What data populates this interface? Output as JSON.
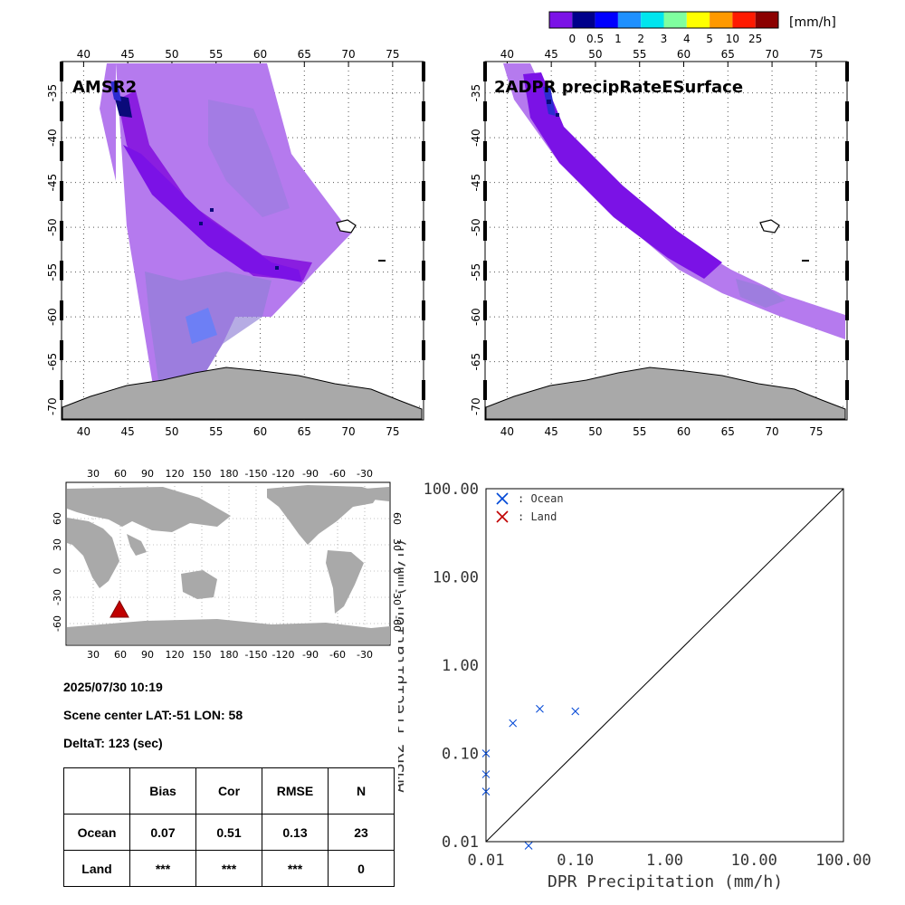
{
  "colorbar": {
    "unit": "[mm/h]",
    "tick_labels": [
      "0",
      "0.5",
      "1",
      "2",
      "3",
      "4",
      "5",
      "10",
      "25"
    ],
    "colors": [
      "#7b12e6",
      "#00008b",
      "#0000ff",
      "#1e90ff",
      "#00e5ee",
      "#7fff9f",
      "#ffff00",
      "#ff9900",
      "#ff1a00",
      "#8b0000"
    ]
  },
  "maps": [
    {
      "title": "AMSR2",
      "lon_ticks": [
        "40",
        "45",
        "50",
        "55",
        "60",
        "65",
        "70",
        "75"
      ],
      "lat_ticks": [
        "-35",
        "-40",
        "-45",
        "-50",
        "-55",
        "-60",
        "-65",
        "-70"
      ]
    },
    {
      "title": "2ADPR precipRateESurface",
      "lon_ticks": [
        "40",
        "45",
        "50",
        "55",
        "60",
        "65",
        "70",
        "75"
      ],
      "lat_ticks": [
        "-35",
        "-40",
        "-45",
        "-50",
        "-55",
        "-60",
        "-65",
        "-70"
      ]
    }
  ],
  "world_map": {
    "lon_ticks": [
      "30",
      "60",
      "90",
      "120",
      "150",
      "180",
      "-150",
      "-120",
      "-90",
      "-60",
      "-30"
    ],
    "lat_ticks": [
      "60",
      "30",
      "0",
      "-30",
      "-60"
    ]
  },
  "info": {
    "datetime": "2025/07/30 10:19",
    "scene_center": "Scene center LAT:-51   LON:  58",
    "delta_t": "DeltaT:  123 (sec)"
  },
  "stats_table": {
    "headers": [
      "",
      "Bias",
      "Cor",
      "RMSE",
      "N"
    ],
    "rows": [
      {
        "label": "Ocean",
        "bias": "0.07",
        "cor": "0.51",
        "rmse": "0.13",
        "n": "23"
      },
      {
        "label": "Land",
        "bias": "***",
        "cor": "***",
        "rmse": "***",
        "n": "0"
      }
    ]
  },
  "colors": {
    "ocean": "#0047d6",
    "land": "#c00000"
  },
  "chart_data": {
    "type": "scatter",
    "xlabel": "DPR Precipitation (mm/h)",
    "ylabel": "AMSR2 Precipitation (mm/h)",
    "x_scale": "log",
    "y_scale": "log",
    "xlim": [
      0.01,
      100
    ],
    "ylim": [
      0.01,
      100
    ],
    "x_tick_labels": [
      "0.01",
      "0.10",
      "1.00",
      "10.00",
      "100.00"
    ],
    "y_tick_labels": [
      "0.01",
      "0.10",
      "1.00",
      "10.00",
      "100.00"
    ],
    "one_to_one_line": true,
    "legend_position": "top-left",
    "series": [
      {
        "name": ": Ocean",
        "marker": "x",
        "points": [
          [
            0.01,
            0.1
          ],
          [
            0.01,
            0.058
          ],
          [
            0.01,
            0.037
          ],
          [
            0.02,
            0.22
          ],
          [
            0.04,
            0.32
          ],
          [
            0.1,
            0.3
          ],
          [
            0.03,
            0.009
          ]
        ]
      },
      {
        "name": ": Land",
        "marker": "x",
        "points": []
      }
    ]
  }
}
